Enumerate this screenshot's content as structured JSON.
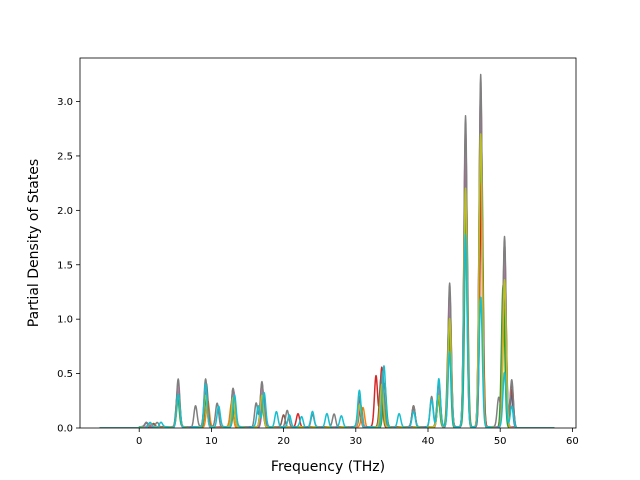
{
  "chart_data": {
    "type": "line",
    "xlabel": "Frequency (THz)",
    "ylabel": "Partial Density of States",
    "xlim": [
      -8.2,
      60.5
    ],
    "ylim": [
      0,
      3.4
    ],
    "xticks": [
      0,
      10,
      20,
      30,
      40,
      50,
      60
    ],
    "yticks": [
      0.0,
      0.5,
      1.0,
      1.5,
      2.0,
      2.5,
      3.0
    ],
    "xtick_labels": [
      "0",
      "10",
      "20",
      "30",
      "40",
      "50",
      "60"
    ],
    "ytick_labels": [
      "0.0",
      "0.5",
      "1.0",
      "1.5",
      "2.0",
      "2.5",
      "3.0"
    ],
    "grid": false,
    "legend": "none",
    "x_range": [
      -5.5,
      57.5
    ],
    "series": [
      {
        "color": "#1f77b4",
        "peaks": [
          [
            1,
            0.04
          ],
          [
            5.4,
            0.3
          ],
          [
            9.2,
            0.3
          ],
          [
            13,
            0.25
          ],
          [
            17,
            0.28
          ],
          [
            30.5,
            0.22
          ],
          [
            33.8,
            0.35
          ],
          [
            41.5,
            0.3
          ],
          [
            43,
            0.9
          ],
          [
            45.2,
            2.0
          ],
          [
            47.3,
            2.4
          ],
          [
            50.5,
            1.2
          ],
          [
            51.5,
            0.3
          ]
        ]
      },
      {
        "color": "#ff7f0e",
        "peaks": [
          [
            1.5,
            0.03
          ],
          [
            5.4,
            0.25
          ],
          [
            9.5,
            0.25
          ],
          [
            12.8,
            0.22
          ],
          [
            17.2,
            0.25
          ],
          [
            31,
            0.18
          ],
          [
            33.5,
            0.3
          ],
          [
            41.5,
            0.28
          ],
          [
            43,
            0.8
          ],
          [
            45.2,
            1.8
          ],
          [
            47.3,
            2.2
          ],
          [
            50.6,
            1.1
          ]
        ]
      },
      {
        "color": "#2ca02c",
        "peaks": [
          [
            2,
            0.03
          ],
          [
            5.3,
            0.3
          ],
          [
            9.3,
            0.28
          ],
          [
            13.2,
            0.2
          ],
          [
            17,
            0.22
          ],
          [
            30.7,
            0.2
          ],
          [
            34,
            0.4
          ],
          [
            41.4,
            0.3
          ],
          [
            42.9,
            0.95
          ],
          [
            45.3,
            2.1
          ],
          [
            47.4,
            2.6
          ],
          [
            50.4,
            1.3
          ]
        ]
      },
      {
        "color": "#d62728",
        "peaks": [
          [
            2,
            0.03
          ],
          [
            5.4,
            0.3
          ],
          [
            9.2,
            0.35
          ],
          [
            13,
            0.3
          ],
          [
            17,
            0.35
          ],
          [
            22,
            0.12
          ],
          [
            30.5,
            0.15
          ],
          [
            32.8,
            0.48
          ],
          [
            33.6,
            0.55
          ],
          [
            38,
            0.18
          ],
          [
            41.5,
            0.32
          ],
          [
            43,
            1.1
          ],
          [
            45.2,
            2.6
          ],
          [
            47.4,
            2.25
          ],
          [
            50.6,
            1.5
          ],
          [
            51.6,
            0.35
          ]
        ]
      },
      {
        "color": "#9467bd",
        "peaks": [
          [
            1,
            0.04
          ],
          [
            5.4,
            0.35
          ],
          [
            9.2,
            0.35
          ],
          [
            13,
            0.3
          ],
          [
            17.2,
            0.3
          ],
          [
            30.5,
            0.25
          ],
          [
            33.7,
            0.45
          ],
          [
            41.5,
            0.35
          ],
          [
            43,
            1.15
          ],
          [
            45.2,
            2.5
          ],
          [
            47.3,
            3.0
          ],
          [
            50.6,
            1.55
          ]
        ]
      },
      {
        "color": "#8c564b",
        "peaks": [
          [
            1.5,
            0.04
          ],
          [
            5.4,
            0.4
          ],
          [
            9.3,
            0.4
          ],
          [
            13,
            0.35
          ],
          [
            17,
            0.4
          ],
          [
            20,
            0.12
          ],
          [
            30.5,
            0.25
          ],
          [
            33.5,
            0.45
          ],
          [
            38,
            0.2
          ],
          [
            41.5,
            0.4
          ],
          [
            43,
            1.25
          ],
          [
            45.2,
            2.7
          ],
          [
            47.3,
            3.1
          ],
          [
            50.6,
            1.7
          ],
          [
            51.6,
            0.4
          ]
        ]
      },
      {
        "color": "#e377c2",
        "peaks": [
          [
            1.5,
            0.04
          ],
          [
            5.4,
            0.38
          ],
          [
            9.2,
            0.38
          ],
          [
            13.1,
            0.33
          ],
          [
            17,
            0.35
          ],
          [
            30.6,
            0.22
          ],
          [
            33.7,
            0.42
          ],
          [
            41.5,
            0.35
          ],
          [
            43,
            1.2
          ],
          [
            45.2,
            2.75
          ],
          [
            47.3,
            3.15
          ],
          [
            50.6,
            1.65
          ]
        ]
      },
      {
        "color": "#7f7f7f",
        "peaks": [
          [
            1,
            0.05
          ],
          [
            2.5,
            0.04
          ],
          [
            5.4,
            0.45
          ],
          [
            7.8,
            0.2
          ],
          [
            9.2,
            0.45
          ],
          [
            10.8,
            0.22
          ],
          [
            13,
            0.36
          ],
          [
            16.2,
            0.22
          ],
          [
            17,
            0.42
          ],
          [
            20.5,
            0.15
          ],
          [
            24,
            0.12
          ],
          [
            27,
            0.12
          ],
          [
            30.5,
            0.28
          ],
          [
            33.7,
            0.52
          ],
          [
            38,
            0.2
          ],
          [
            40.5,
            0.28
          ],
          [
            41.5,
            0.42
          ],
          [
            43,
            1.32
          ],
          [
            45.2,
            2.86
          ],
          [
            47.3,
            3.24
          ],
          [
            49.8,
            0.28
          ],
          [
            50.6,
            1.75
          ],
          [
            51.6,
            0.44
          ]
        ]
      },
      {
        "color": "#bcbd22",
        "peaks": [
          [
            1.5,
            0.04
          ],
          [
            5.4,
            0.3
          ],
          [
            9.2,
            0.3
          ],
          [
            13,
            0.28
          ],
          [
            17,
            0.3
          ],
          [
            30.5,
            0.2
          ],
          [
            33.6,
            0.4
          ],
          [
            41.5,
            0.3
          ],
          [
            43,
            1.0
          ],
          [
            45.2,
            2.2
          ],
          [
            47.3,
            2.7
          ],
          [
            50.6,
            1.35
          ]
        ]
      },
      {
        "color": "#17becf",
        "peaks": [
          [
            1.5,
            0.04
          ],
          [
            3,
            0.05
          ],
          [
            5.4,
            0.3
          ],
          [
            9.2,
            0.4
          ],
          [
            11,
            0.2
          ],
          [
            13.2,
            0.3
          ],
          [
            16.5,
            0.2
          ],
          [
            17.3,
            0.32
          ],
          [
            19,
            0.15
          ],
          [
            20.8,
            0.12
          ],
          [
            22.5,
            0.1
          ],
          [
            24,
            0.14
          ],
          [
            26,
            0.12
          ],
          [
            28,
            0.1
          ],
          [
            30.5,
            0.34
          ],
          [
            33.9,
            0.56
          ],
          [
            36,
            0.12
          ],
          [
            38,
            0.14
          ],
          [
            40.5,
            0.25
          ],
          [
            41.5,
            0.45
          ],
          [
            43,
            0.7
          ],
          [
            45.2,
            1.78
          ],
          [
            47.3,
            1.2
          ],
          [
            50.6,
            0.5
          ],
          [
            51.6,
            0.2
          ]
        ]
      }
    ]
  }
}
